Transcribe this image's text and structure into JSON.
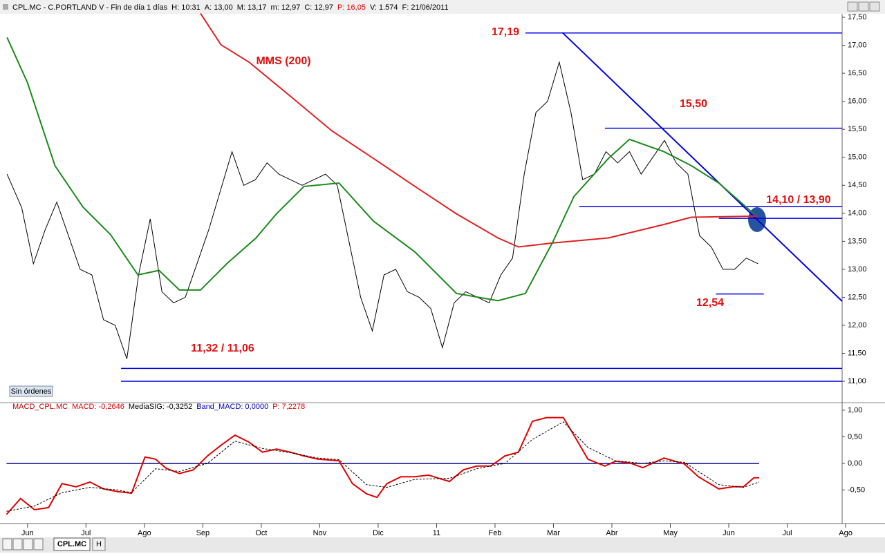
{
  "header": [
    {
      "text": "CPL.MC - C.PORTLAND V - Fin de día 1 días"
    },
    {
      "text": "H: 10:31"
    },
    {
      "text": "A: 13,00"
    },
    {
      "text": "M: 13,17"
    },
    {
      "text": "m: 12,97"
    },
    {
      "text": "C: 12,97"
    },
    {
      "text": "P: 16,05",
      "color": "#e00000"
    },
    {
      "text": "V: 1.574"
    },
    {
      "text": "F: 21/06/2011"
    }
  ],
  "status": "Sin órdenes",
  "tabs": [
    "CPL.MC",
    "H"
  ],
  "chart_data": [
    {
      "type": "line",
      "xlim": [
        -0.4,
        13.94
      ],
      "ylim": [
        10.68,
        17.71
      ],
      "yticks": [
        {
          "value": 11,
          "label": "11,00"
        },
        {
          "value": 11.5,
          "label": "11,50"
        },
        {
          "value": 12,
          "label": "12,00"
        },
        {
          "value": 12.5,
          "label": "12,50"
        },
        {
          "value": 13,
          "label": "13,00"
        },
        {
          "value": 13.5,
          "label": "13,50"
        },
        {
          "value": 14,
          "label": "14,00"
        },
        {
          "value": 14.5,
          "label": "14,50"
        },
        {
          "value": 15,
          "label": "15,00"
        },
        {
          "value": 15.5,
          "label": "15,50"
        },
        {
          "value": 16,
          "label": "16,00"
        },
        {
          "value": 16.5,
          "label": "16,50"
        },
        {
          "value": 17,
          "label": "17,00"
        },
        {
          "value": 17.5,
          "label": "17,50"
        }
      ],
      "annotations": [
        "17,19",
        "MMS (200)",
        "15,50",
        "14,10 / 13,90",
        "12,54",
        "11,32 / 11,06"
      ],
      "series": [
        {
          "name": "CPL.MC",
          "color": "#000000",
          "x": [
            -0.35,
            -0.1,
            0.1,
            0.3,
            0.5,
            0.7,
            0.9,
            1.1,
            1.3,
            1.5,
            1.7,
            1.9,
            2.1,
            2.3,
            2.5,
            2.7,
            2.9,
            3.1,
            3.3,
            3.5,
            3.7,
            3.9,
            4.1,
            4.3,
            4.5,
            4.7,
            4.9,
            5.1,
            5.3,
            5.5,
            5.7,
            5.9,
            6.1,
            6.3,
            6.5,
            6.7,
            6.9,
            7.1,
            7.3,
            7.5,
            7.7,
            7.9,
            8.1,
            8.3,
            8.5,
            8.7,
            8.9,
            9.1,
            9.3,
            9.5,
            9.7,
            9.9,
            10.1,
            10.3,
            10.5,
            10.7,
            10.9,
            11.1,
            11.3,
            11.5,
            11.7,
            11.9,
            12.1,
            12.3,
            12.5
          ],
          "values": [
            14.7,
            14.1,
            13.1,
            13.7,
            14.2,
            13.6,
            13.0,
            12.9,
            12.1,
            12.0,
            11.4,
            12.9,
            13.9,
            12.6,
            12.4,
            12.5,
            13.1,
            13.7,
            14.4,
            15.1,
            14.5,
            14.6,
            14.9,
            14.7,
            14.6,
            14.5,
            14.6,
            14.7,
            14.5,
            13.5,
            12.5,
            11.9,
            12.9,
            13.0,
            12.6,
            12.5,
            12.3,
            11.6,
            12.4,
            12.6,
            12.5,
            12.4,
            12.9,
            13.2,
            14.7,
            15.8,
            16.0,
            16.7,
            15.8,
            14.6,
            14.7,
            15.1,
            14.9,
            15.1,
            14.7,
            15.0,
            15.3,
            14.9,
            14.7,
            13.6,
            13.4,
            13.0,
            13.0,
            13.2,
            13.1
          ]
        },
        {
          "name": "MMS (200)",
          "color": "#e02020",
          "x": [
            2.96,
            3.31,
            3.79,
            4.5,
            5.21,
            5.92,
            6.63,
            7.34,
            8.05,
            8.4,
            8.99,
            9.94,
            10.89,
            11.36,
            12.49
          ],
          "values": [
            17.57,
            17.01,
            16.7,
            16.09,
            15.47,
            14.98,
            14.48,
            13.99,
            13.56,
            13.4,
            13.47,
            13.56,
            13.8,
            13.93,
            13.95
          ]
        },
        {
          "color": "#1a8a1a",
          "x": [
            -0.35,
            0,
            0.47,
            0.95,
            1.42,
            1.89,
            2.25,
            2.6,
            2.96,
            3.43,
            3.91,
            4.26,
            4.73,
            5.33,
            5.92,
            6.63,
            7.34,
            8.05,
            8.52,
            8.99,
            9.35,
            9.94,
            10.3,
            10.89,
            11.36,
            11.83,
            12.43
          ],
          "values": [
            17.14,
            16.33,
            14.85,
            14.11,
            13.62,
            12.9,
            12.98,
            12.63,
            12.63,
            13.12,
            13.56,
            13.99,
            14.48,
            14.54,
            13.86,
            13.31,
            12.57,
            12.44,
            12.57,
            13.49,
            14.3,
            14.98,
            15.32,
            15.1,
            14.85,
            14.54,
            13.99
          ]
        }
      ],
      "levels": [
        {
          "value": 17.22,
          "x": [
            8.52,
            13.94
          ]
        },
        {
          "value": 15.52,
          "x": [
            9.88,
            13.94
          ]
        },
        {
          "value": 14.12,
          "x": [
            9.44,
            13.94
          ]
        },
        {
          "value": 13.91,
          "x": [
            11.83,
            13.94
          ]
        },
        {
          "value": 12.56,
          "x": [
            11.78,
            12.6
          ]
        },
        {
          "value": 11.23,
          "x": [
            1.6,
            13.94
          ]
        },
        {
          "value": 11.0,
          "x": [
            1.6,
            13.94
          ]
        }
      ],
      "level_color": "#0000e0",
      "trendlines": [
        {
          "x": [
            9.15,
            13.94
          ],
          "y": [
            17.23,
            12.43
          ]
        }
      ]
    },
    {
      "type": "line",
      "xlim": [
        -0.4,
        13.94
      ],
      "ylim": [
        -1.13,
        1.05
      ],
      "header": [
        {
          "text": "MACD_CPL.MC",
          "color": "#c00000"
        },
        {
          "text": "MACD: -0,2646",
          "color": "#e00000"
        },
        {
          "text": "MediaSIG: -0,3252",
          "color": "#000000"
        },
        {
          "text": "Band_MACD: 0,0000",
          "color": "#0000c0"
        },
        {
          "text": "P: 7,2278",
          "color": "#e00000"
        }
      ],
      "yticks": [
        {
          "value": -0.5,
          "label": "-0,50"
        },
        {
          "value": 0,
          "label": "0,00"
        },
        {
          "value": 0.5,
          "label": "0,50"
        },
        {
          "value": 1,
          "label": "1,00"
        }
      ],
      "xticks": [
        {
          "value": 0,
          "label": "Jun"
        },
        {
          "value": 1,
          "label": "Jul"
        },
        {
          "value": 2,
          "label": "Ago"
        },
        {
          "value": 3,
          "label": "Sep"
        },
        {
          "value": 4,
          "label": "Oct"
        },
        {
          "value": 5,
          "label": "Nov"
        },
        {
          "value": 6,
          "label": "Dic"
        },
        {
          "value": 7,
          "label": "11"
        },
        {
          "value": 8,
          "label": "Feb"
        },
        {
          "value": 9,
          "label": "Mar"
        },
        {
          "value": 10,
          "label": "Abr"
        },
        {
          "value": 11,
          "label": "May"
        },
        {
          "value": 12,
          "label": "Jun"
        },
        {
          "value": 13,
          "label": "Jul"
        },
        {
          "value": 14,
          "label": "Ago"
        }
      ],
      "series": [
        {
          "color": "#e00000",
          "x": [
            -0.36,
            -0.12,
            0.12,
            0.36,
            0.59,
            0.83,
            1.07,
            1.3,
            1.54,
            1.78,
            2.01,
            2.19,
            2.37,
            2.6,
            2.84,
            3.08,
            3.31,
            3.55,
            3.79,
            4.02,
            4.26,
            4.5,
            4.73,
            4.97,
            5.33,
            5.56,
            5.8,
            5.98,
            6.15,
            6.39,
            6.63,
            6.86,
            7.22,
            7.46,
            7.69,
            7.93,
            8.17,
            8.4,
            8.64,
            8.88,
            9.17,
            9.35,
            9.59,
            9.88,
            10.06,
            10.3,
            10.53,
            10.89,
            11.24,
            11.48,
            11.83,
            12.07,
            12.25,
            12.43,
            12.52
          ],
          "values": [
            -0.96,
            -0.66,
            -0.87,
            -0.83,
            -0.38,
            -0.44,
            -0.35,
            -0.48,
            -0.53,
            -0.56,
            0.12,
            0.08,
            -0.09,
            -0.19,
            -0.12,
            0.14,
            0.34,
            0.53,
            0.4,
            0.21,
            0.27,
            0.21,
            0.14,
            0.08,
            0.05,
            -0.38,
            -0.57,
            -0.64,
            -0.38,
            -0.25,
            -0.25,
            -0.22,
            -0.34,
            -0.12,
            -0.05,
            -0.05,
            0.14,
            0.21,
            0.79,
            0.86,
            0.86,
            0.53,
            0.08,
            -0.05,
            0.04,
            0.01,
            -0.08,
            0.1,
            -0.01,
            -0.25,
            -0.48,
            -0.44,
            -0.44,
            -0.27,
            -0.27
          ]
        },
        {
          "color": "#000000",
          "dash": true,
          "x": [
            -0.36,
            0.12,
            0.59,
            1.07,
            1.54,
            1.78,
            2.19,
            2.6,
            3.08,
            3.55,
            4.02,
            4.5,
            4.97,
            5.33,
            5.8,
            6.15,
            6.63,
            7.22,
            7.69,
            8.17,
            8.64,
            9.17,
            9.59,
            10.06,
            10.53,
            10.89,
            11.24,
            11.83,
            12.25,
            12.52
          ],
          "values": [
            -0.9,
            -0.8,
            -0.55,
            -0.45,
            -0.5,
            -0.55,
            -0.1,
            -0.15,
            0.0,
            0.42,
            0.28,
            0.2,
            0.1,
            0.07,
            -0.4,
            -0.45,
            -0.3,
            -0.28,
            -0.1,
            0.0,
            0.45,
            0.78,
            0.3,
            0.05,
            0.0,
            0.05,
            0.02,
            -0.4,
            -0.45,
            -0.35
          ]
        }
      ],
      "levels": [
        {
          "value": 0,
          "x": [
            -0.36,
            12.52
          ]
        }
      ],
      "level_color": "#000080"
    }
  ]
}
